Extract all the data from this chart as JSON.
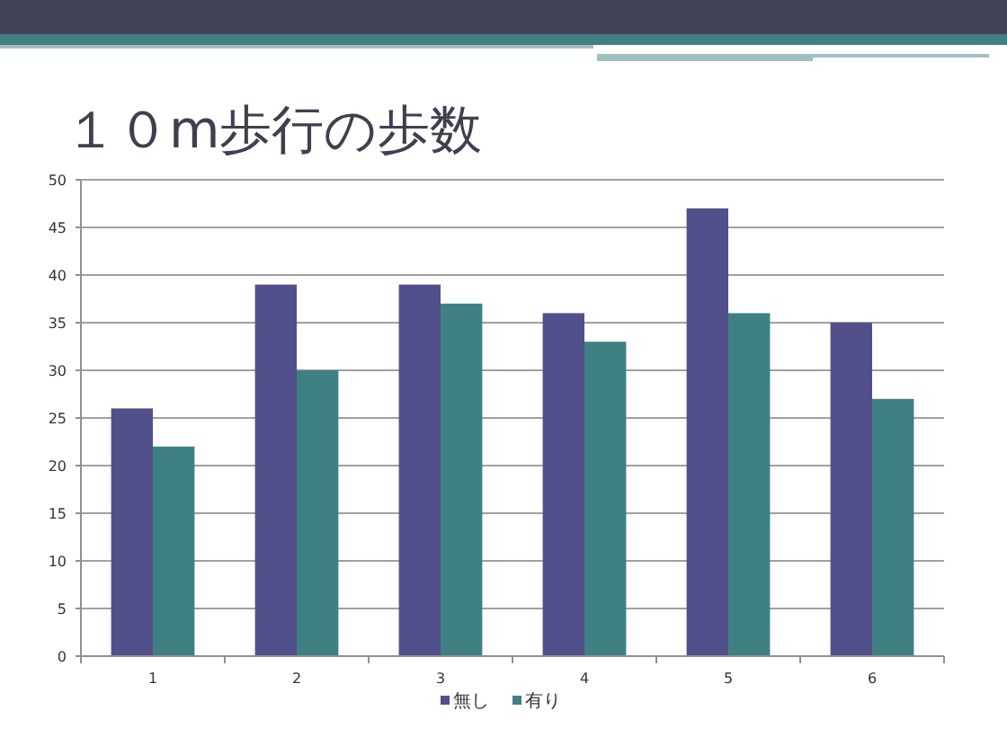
{
  "chart_data": {
    "type": "bar",
    "title": "１０m歩行の歩数",
    "categories": [
      "1",
      "2",
      "3",
      "4",
      "5",
      "6"
    ],
    "series": [
      {
        "name": "無し",
        "color": "#52508a",
        "values": [
          26,
          39,
          39,
          36,
          47,
          35
        ]
      },
      {
        "name": "有り",
        "color": "#3f8083",
        "values": [
          22,
          30,
          37,
          33,
          36,
          27
        ]
      }
    ],
    "ylim": [
      0,
      50
    ],
    "yticks": [
      0,
      5,
      10,
      15,
      20,
      25,
      30,
      35,
      40,
      45,
      50
    ],
    "grid": "y",
    "legend": "bottom"
  }
}
